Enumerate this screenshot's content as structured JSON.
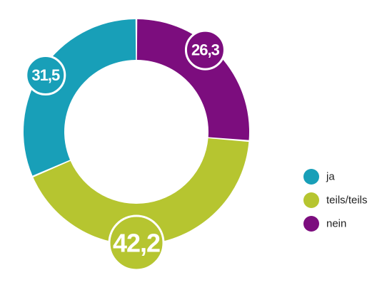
{
  "chart_data": {
    "type": "donut",
    "categories": [
      "ja",
      "teils/teils",
      "nein"
    ],
    "values": [
      31.5,
      42.2,
      26.3
    ],
    "value_labels": [
      "31,5",
      "42,2",
      "26,3"
    ],
    "colors": [
      "#189fb8",
      "#b6c530",
      "#7c0d7e"
    ],
    "legend_position": "right",
    "title": "",
    "start_angle_deg": 0,
    "direction": "counterclockwise"
  }
}
